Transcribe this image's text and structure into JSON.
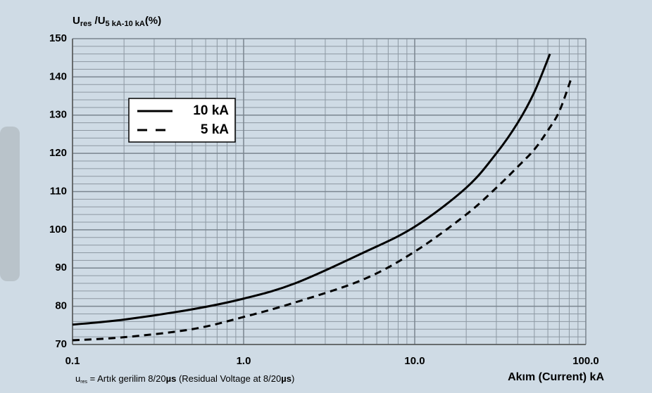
{
  "chart_data": {
    "type": "line",
    "y_label": [
      "U",
      "res",
      " /U",
      "5 kA-10 kA",
      "(%)"
    ],
    "x_label": "Akım (Current) kA",
    "note": [
      "u",
      "res",
      " = Artık gerilim 8/20",
      "µs",
      "   (Residual Voltage at 8/20",
      "µs",
      ")"
    ],
    "x_scale": "log",
    "xlim": [
      0.1,
      100
    ],
    "xticks": [
      0.1,
      {
        "value": 1,
        "label": "1.0"
      },
      {
        "value": 10,
        "label": "10.0"
      },
      {
        "value": 100,
        "label": "100.0"
      }
    ],
    "xminorticks": [
      0.2,
      0.3,
      0.4,
      0.5,
      0.6,
      0.7,
      0.8,
      0.9,
      2,
      3,
      4,
      5,
      6,
      7,
      8,
      9,
      20,
      30,
      40,
      50,
      60,
      70,
      80,
      90
    ],
    "ylim": [
      70,
      150
    ],
    "yticks": [
      70,
      80,
      90,
      100,
      110,
      120,
      130,
      140,
      150
    ],
    "yminorticks": [
      72,
      74,
      76,
      78,
      82,
      84,
      86,
      88,
      92,
      94,
      96,
      98,
      102,
      104,
      106,
      108,
      112,
      114,
      116,
      118,
      122,
      124,
      126,
      128,
      132,
      134,
      136,
      138,
      142,
      144,
      146,
      148
    ],
    "grid": true,
    "legend": "upper-left",
    "series": [
      {
        "name": "10 kA",
        "color": "#000000",
        "line_style": "solid",
        "x": [
          0.1,
          0.2,
          0.5,
          1,
          2,
          5,
          10,
          20,
          30,
          40,
          50,
          61.7
        ],
        "values": [
          75.2,
          76.5,
          79.2,
          82,
          86,
          94,
          100.8,
          111,
          120,
          128,
          136,
          146
        ]
      },
      {
        "name": "5 kA",
        "color": "#000000",
        "line_style": "dashed",
        "x": [
          0.1,
          0.2,
          0.5,
          1,
          2,
          5,
          10,
          20,
          30,
          40,
          50,
          60,
          70,
          82.8
        ],
        "values": [
          71.1,
          71.9,
          74,
          77.2,
          81,
          87,
          94.3,
          104,
          111,
          116.5,
          121,
          126,
          131,
          140
        ]
      }
    ]
  }
}
